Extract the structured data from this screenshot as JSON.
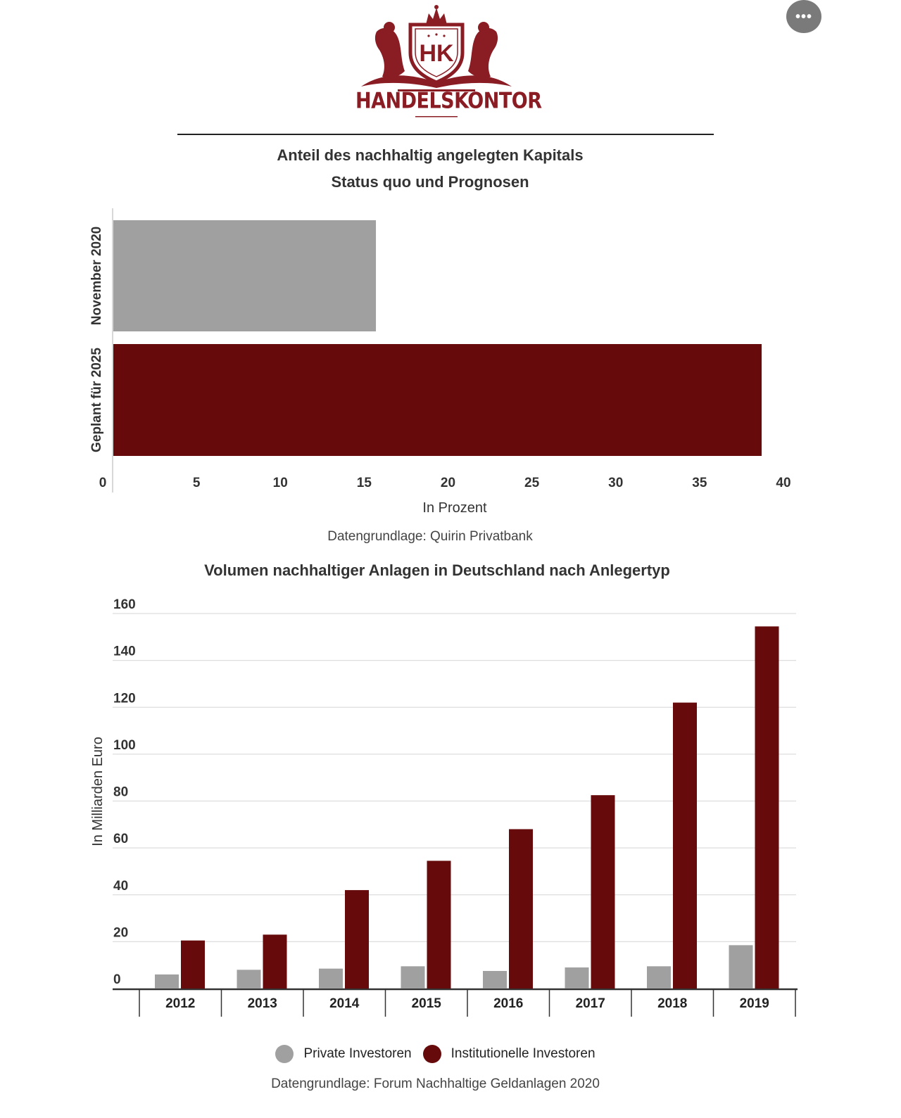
{
  "ui": {
    "more_button_label": "•••",
    "more_icon": "ellipsis-icon"
  },
  "logo": {
    "monogram": "HK",
    "wordmark": "HANDELSKONTOR",
    "color": "#8a1c24"
  },
  "colors": {
    "grey": "#a0a0a0",
    "maroon": "#670a0b",
    "grid": "#dddddd",
    "axis": "#333333"
  },
  "chart_data": [
    {
      "type": "bar",
      "orientation": "horizontal",
      "title": "Anteil des nachhaltig angelegten Kapitals",
      "subtitle": "Status quo und Prognosen",
      "categories": [
        "November 2020",
        "Geplant für 2025"
      ],
      "values": [
        15.7,
        38.7
      ],
      "bar_colors": [
        "#a0a0a0",
        "#670a0b"
      ],
      "xlabel": "In Prozent",
      "ylabel": "",
      "xlim": [
        0,
        40
      ],
      "xticks": [
        0,
        5,
        10,
        15,
        20,
        25,
        30,
        35,
        40
      ],
      "grid": false,
      "source": "Datengrundlage: Quirin Privatbank"
    },
    {
      "type": "bar",
      "orientation": "vertical",
      "title": "Volumen nachhaltiger Anlagen in Deutschland nach Anlegertyp",
      "categories": [
        "2012",
        "2013",
        "2014",
        "2015",
        "2016",
        "2017",
        "2018",
        "2019"
      ],
      "series": [
        {
          "name": "Private Investoren",
          "color": "#a0a0a0",
          "values": [
            6,
            8,
            8.5,
            9.5,
            7.5,
            9,
            9.5,
            18.5
          ]
        },
        {
          "name": "Institutionelle Investoren",
          "color": "#670a0b",
          "values": [
            20.5,
            23,
            42,
            54.5,
            68,
            82.5,
            122,
            154.5
          ]
        }
      ],
      "xlabel": "",
      "ylabel": "In Milliarden Euro",
      "ylim": [
        0,
        160
      ],
      "yticks": [
        0,
        20,
        40,
        60,
        80,
        100,
        120,
        140,
        160
      ],
      "grid": true,
      "legend": "bottom-center",
      "source": "Datengrundlage: Forum Nachhaltige Geldanlagen 2020"
    }
  ]
}
